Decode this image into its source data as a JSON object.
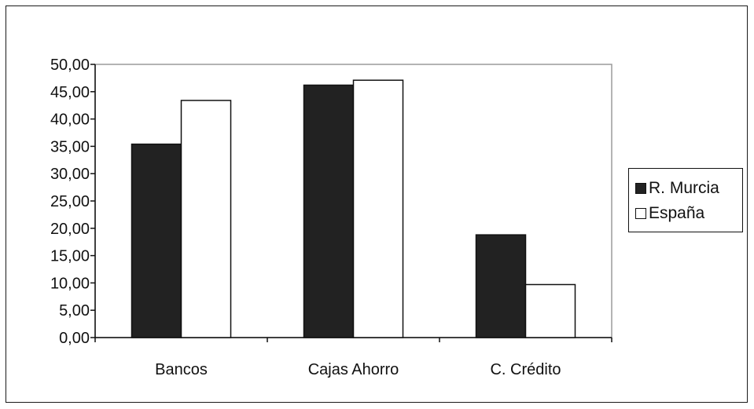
{
  "chart_data": {
    "type": "bar",
    "title": "",
    "xlabel": "",
    "ylabel": "",
    "categories": [
      "Bancos",
      "Cajas Ahorro",
      "C. Crédito"
    ],
    "series": [
      {
        "name": "R. Murcia",
        "values": [
          35.4,
          46.2,
          18.8
        ],
        "color": "#222222"
      },
      {
        "name": "España",
        "values": [
          43.4,
          47.1,
          9.7
        ],
        "color": "#ffffff"
      }
    ],
    "ylim": [
      0,
      50
    ],
    "yticks": [
      "0,00",
      "5,00",
      "10,00",
      "15,00",
      "20,00",
      "25,00",
      "30,00",
      "35,00",
      "40,00",
      "45,00",
      "50,00"
    ],
    "grid": false,
    "legend_position": "right"
  }
}
